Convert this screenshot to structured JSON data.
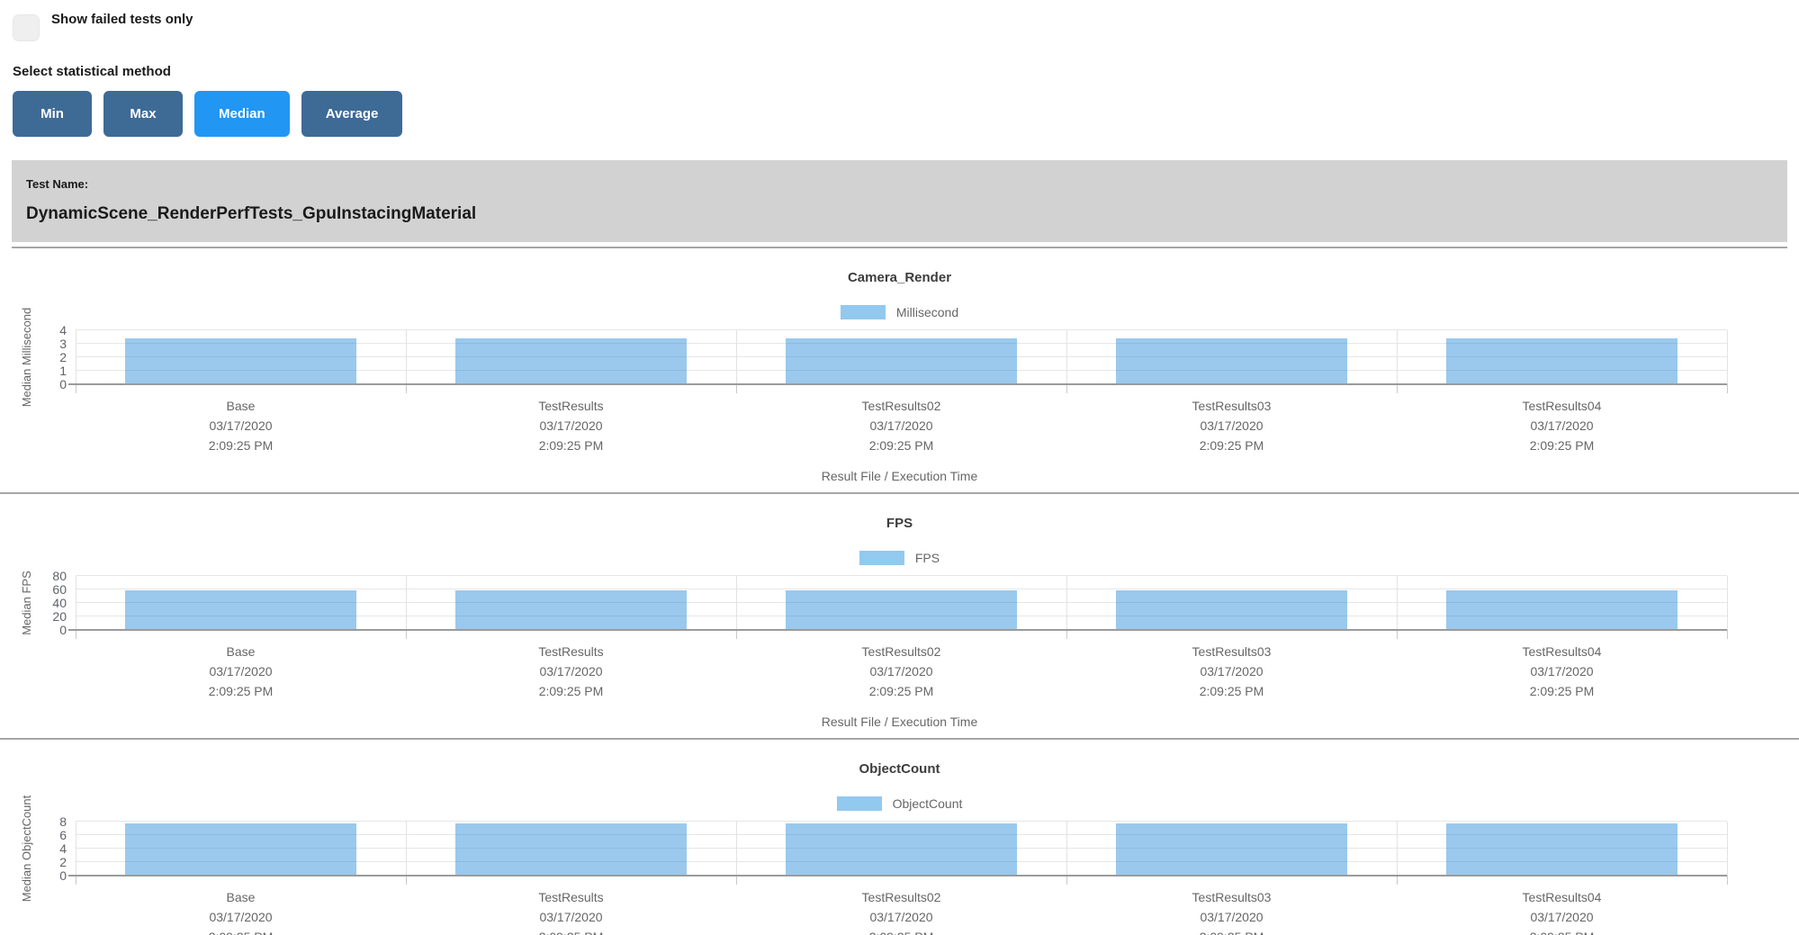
{
  "header": {
    "show_failed_label": "Show failed tests only",
    "stat_method_label": "Select statistical method",
    "stat_buttons": [
      {
        "label": "Min",
        "active": false
      },
      {
        "label": "Max",
        "active": false
      },
      {
        "label": "Median",
        "active": true
      },
      {
        "label": "Average",
        "active": false
      }
    ]
  },
  "test_banner": {
    "label": "Test Name:",
    "name": "DynamicScene_RenderPerfTests_GpuInstacingMaterial"
  },
  "colors": {
    "active_button": "#2196f3",
    "inactive_button": "#3e6a96",
    "bar_fill": "#92cbf2",
    "legend_swatch": "#92c9ef",
    "banner_bg": "#d2d2d2"
  },
  "categories": [
    {
      "name": "Base",
      "date": "03/17/2020",
      "time": "2:09:25 PM"
    },
    {
      "name": "TestResults",
      "date": "03/17/2020",
      "time": "2:09:25 PM"
    },
    {
      "name": "TestResults02",
      "date": "03/17/2020",
      "time": "2:09:25 PM"
    },
    {
      "name": "TestResults03",
      "date": "03/17/2020",
      "time": "2:09:25 PM"
    },
    {
      "name": "TestResults04",
      "date": "03/17/2020",
      "time": "2:09:25 PM"
    }
  ],
  "chart_data": [
    {
      "type": "bar",
      "title": "Camera_Render",
      "legend": "Millisecond",
      "ylabel": "Median Millisecond",
      "xlabel": "Result File / Execution Time",
      "ylim": [
        0,
        4
      ],
      "yticks": [
        0,
        1,
        2,
        3,
        4
      ],
      "grid": true,
      "legend_position": "top",
      "categories": [
        "Base",
        "TestResults",
        "TestResults02",
        "TestResults03",
        "TestResults04"
      ],
      "values": [
        3.4,
        3.4,
        3.4,
        3.4,
        3.4
      ]
    },
    {
      "type": "bar",
      "title": "FPS",
      "legend": "FPS",
      "ylabel": "Median FPS",
      "xlabel": "Result File / Execution Time",
      "ylim": [
        0,
        80
      ],
      "yticks": [
        0,
        20,
        40,
        60,
        80
      ],
      "grid": true,
      "legend_position": "top",
      "categories": [
        "Base",
        "TestResults",
        "TestResults02",
        "TestResults03",
        "TestResults04"
      ],
      "values": [
        58.5,
        58.5,
        58.5,
        58.5,
        58.5
      ]
    },
    {
      "type": "bar",
      "title": "ObjectCount",
      "legend": "ObjectCount",
      "ylabel": "Median ObjectCount",
      "xlabel": "",
      "ylim": [
        0,
        8
      ],
      "yticks": [
        0,
        2,
        4,
        6,
        8
      ],
      "grid": true,
      "legend_position": "top",
      "categories": [
        "Base",
        "TestResults",
        "TestResults02",
        "TestResults03",
        "TestResults04"
      ],
      "values": [
        7.8,
        7.8,
        7.8,
        7.8,
        7.8
      ]
    }
  ]
}
